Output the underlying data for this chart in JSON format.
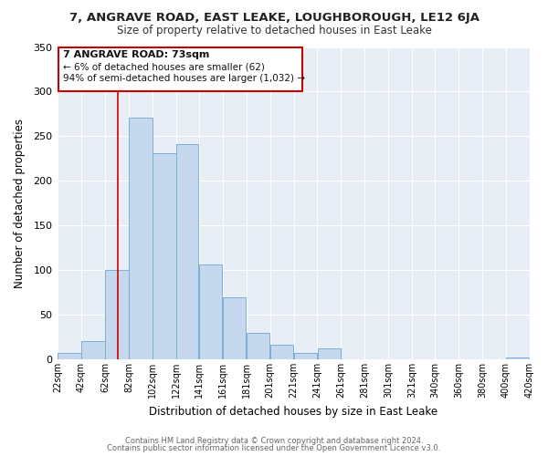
{
  "title": "7, ANGRAVE ROAD, EAST LEAKE, LOUGHBOROUGH, LE12 6JA",
  "subtitle": "Size of property relative to detached houses in East Leake",
  "xlabel": "Distribution of detached houses by size in East Leake",
  "ylabel": "Number of detached properties",
  "bar_color": "#c5d8ed",
  "bar_edge_color": "#7bafd4",
  "background_color": "#ffffff",
  "plot_bg_color": "#e8eef5",
  "grid_color": "#ffffff",
  "annotation_line_color": "#cc0000",
  "bin_edges": [
    22,
    42,
    62,
    82,
    102,
    122,
    141,
    161,
    181,
    201,
    221,
    241,
    261,
    281,
    301,
    321,
    340,
    360,
    380,
    400,
    420
  ],
  "bin_labels": [
    "22sqm",
    "42sqm",
    "62sqm",
    "82sqm",
    "102sqm",
    "122sqm",
    "141sqm",
    "161sqm",
    "181sqm",
    "201sqm",
    "221sqm",
    "241sqm",
    "261sqm",
    "281sqm",
    "301sqm",
    "321sqm",
    "340sqm",
    "360sqm",
    "380sqm",
    "400sqm",
    "420sqm"
  ],
  "counts": [
    7,
    20,
    100,
    271,
    231,
    241,
    106,
    70,
    30,
    16,
    7,
    12,
    0,
    0,
    0,
    0,
    0,
    0,
    0,
    2
  ],
  "ylim": [
    0,
    350
  ],
  "yticks": [
    0,
    50,
    100,
    150,
    200,
    250,
    300,
    350
  ],
  "marker_value": 73,
  "annotation_text_line1": "7 ANGRAVE ROAD: 73sqm",
  "annotation_text_line2": "← 6% of detached houses are smaller (62)",
  "annotation_text_line3": "94% of semi-detached houses are larger (1,032) →",
  "footer_line1": "Contains HM Land Registry data © Crown copyright and database right 2024.",
  "footer_line2": "Contains public sector information licensed under the Open Government Licence v3.0."
}
